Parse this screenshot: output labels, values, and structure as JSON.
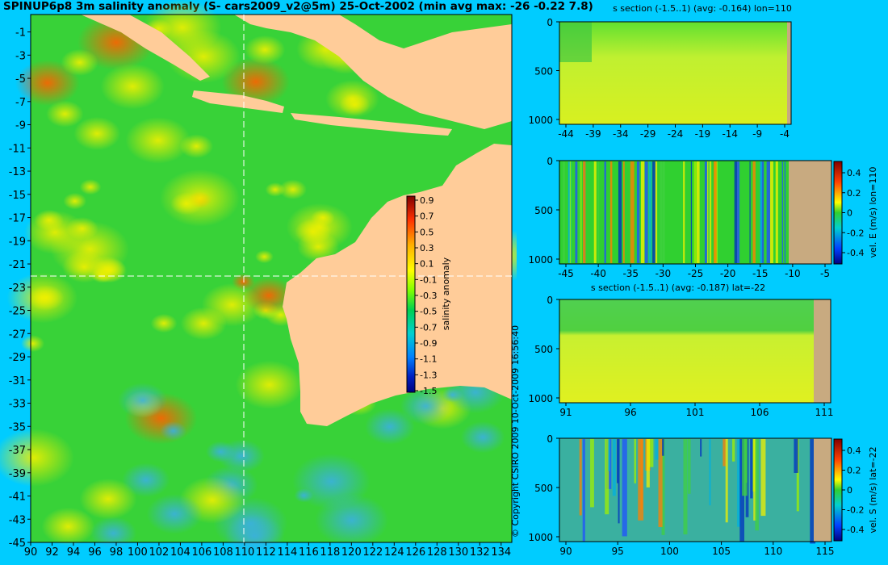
{
  "title": "SPINUP6p8 3m salinity anomaly (S- cars2009_v2@5m) 25-Oct-2002 (min avg max: -26 -0.22 7.8)",
  "copyright": "© Copyright CSIRO 2009  10-Oct-2009 16:56:40",
  "colors": {
    "background": "#00ccff",
    "land": "#ffcc99",
    "section_land": "#c8aa80"
  },
  "chart_data": [
    {
      "type": "heatmap",
      "name": "map",
      "x_ticks": [
        90,
        92,
        94,
        96,
        98,
        100,
        102,
        104,
        106,
        108,
        110,
        112,
        114,
        116,
        118,
        120,
        122,
        124,
        126,
        128,
        130,
        132,
        134
      ],
      "y_ticks": [
        -1,
        -3,
        -5,
        -7,
        -9,
        -11,
        -13,
        -15,
        -17,
        -19,
        -21,
        -23,
        -25,
        -27,
        -29,
        -31,
        -33,
        -35,
        -37,
        -39,
        -41,
        -43,
        -45
      ],
      "xlim": [
        90,
        135
      ],
      "ylim": [
        -45,
        0.5
      ],
      "crosshair_lon": 110,
      "crosshair_lat": -22,
      "colorbar_label": "salinity anomaly",
      "colorbar_ticks": [
        "0.9",
        "0.7",
        "0.5",
        "0.3",
        "0.1",
        "-0.1",
        "-0.3",
        "-0.5",
        "-0.7",
        "-0.9",
        "-1.1",
        "-1.3",
        "-1.5"
      ]
    },
    {
      "type": "heatmap",
      "name": "s_section_lon",
      "title": "s section (-1.5..1) (avg: -0.164) lon=110",
      "x_ticks": [
        "-44",
        "-39",
        "-34",
        "-29",
        "-24",
        "-19",
        "-14",
        "-9",
        "-4"
      ],
      "y_ticks": [
        "0",
        "500",
        "1000"
      ]
    },
    {
      "type": "heatmap",
      "name": "vel_e_section",
      "x_ticks": [
        "-45",
        "-40",
        "-35",
        "-30",
        "-25",
        "-20",
        "-15",
        "-10",
        "-5"
      ],
      "y_ticks": [
        "0",
        "500",
        "1000"
      ],
      "colorbar_label": "vel. E (m/s) lon=110",
      "colorbar_ticks": [
        "0.4",
        "0.2",
        "0",
        "-0.2",
        "-0.4"
      ]
    },
    {
      "type": "heatmap",
      "name": "s_section_lat",
      "title": "s section (-1.5..1) (avg: -0.187) lat=-22",
      "x_ticks": [
        "91",
        "96",
        "101",
        "106",
        "111"
      ],
      "y_ticks": [
        "0",
        "500",
        "1000"
      ]
    },
    {
      "type": "heatmap",
      "name": "vel_s_section",
      "x_ticks": [
        "90",
        "95",
        "100",
        "105",
        "110",
        "115"
      ],
      "y_ticks": [
        "0",
        "500",
        "1000"
      ],
      "colorbar_label": "vel. S (m/s) lat=-22",
      "colorbar_ticks": [
        "0.4",
        "0.2",
        "0",
        "-0.2",
        "-0.4"
      ]
    }
  ]
}
